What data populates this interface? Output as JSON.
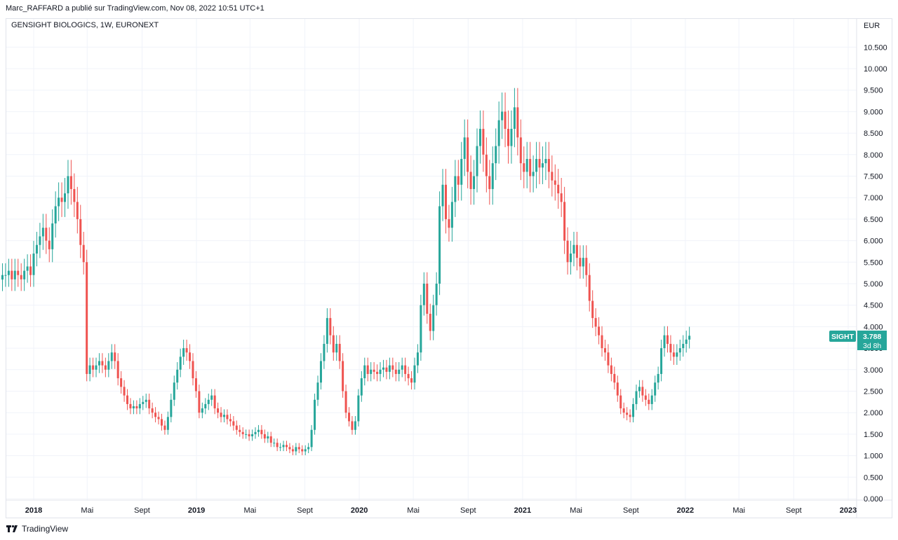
{
  "header": {
    "publisher_line": "Marc_RAFFARD a publié sur TradingView.com, Nov 08, 2022 10:51 UTC+1"
  },
  "symbol_title": "GENSIGHT BIOLOGICS, 1W, EURONEXT",
  "footer": {
    "brand": "TradingView",
    "logo_icon": "tradingview-logo-icon"
  },
  "price_label": {
    "ticker": "SIGHT",
    "price": "3.788",
    "countdown": "3d 8h"
  },
  "colors": {
    "up": "#26a69a",
    "down": "#ef5350",
    "grid": "#f0f3fa",
    "axis_text": "#131722",
    "badge": "#26a69a"
  },
  "chart_data": {
    "type": "candlestick",
    "title": "GENSIGHT BIOLOGICS, 1W, EURONEXT",
    "currency_label": "EUR",
    "ylim": [
      0,
      10.5
    ],
    "y_ticks": [
      "0.000",
      "0.500",
      "1.000",
      "1.500",
      "2.000",
      "2.500",
      "3.000",
      "3.500",
      "4.000",
      "4.500",
      "5.000",
      "5.500",
      "6.000",
      "6.500",
      "7.000",
      "7.500",
      "8.000",
      "8.500",
      "9.000",
      "9.500",
      "10.000",
      "10.500"
    ],
    "x_ticks": [
      {
        "label": "2018",
        "date": "2018-01-01",
        "bold": true
      },
      {
        "label": "Mai",
        "date": "2018-05-01",
        "bold": false
      },
      {
        "label": "Sept",
        "date": "2018-09-01",
        "bold": false
      },
      {
        "label": "2019",
        "date": "2019-01-01",
        "bold": true
      },
      {
        "label": "Mai",
        "date": "2019-05-01",
        "bold": false
      },
      {
        "label": "Sept",
        "date": "2019-09-01",
        "bold": false
      },
      {
        "label": "2020",
        "date": "2020-01-01",
        "bold": true
      },
      {
        "label": "Mai",
        "date": "2020-05-01",
        "bold": false
      },
      {
        "label": "Sept",
        "date": "2020-09-01",
        "bold": false
      },
      {
        "label": "2021",
        "date": "2021-01-01",
        "bold": true
      },
      {
        "label": "Mai",
        "date": "2021-05-01",
        "bold": false
      },
      {
        "label": "Sept",
        "date": "2021-09-01",
        "bold": false
      },
      {
        "label": "2022",
        "date": "2022-01-01",
        "bold": true
      },
      {
        "label": "Mai",
        "date": "2022-05-01",
        "bold": false
      },
      {
        "label": "Sept",
        "date": "2022-09-01",
        "bold": false
      },
      {
        "label": "2023",
        "date": "2023-01-01",
        "bold": true
      }
    ],
    "grid": true,
    "last_price": 3.788,
    "series": [
      {
        "name": "GENSIGHT BIOLOGICS",
        "interval": "1W",
        "first_week": "2017-10-23",
        "close": [
          5.2,
          5.2,
          5.3,
          5.1,
          5.3,
          5.2,
          5.1,
          5.3,
          5.4,
          5.2,
          5.7,
          5.9,
          6.1,
          6.3,
          6.0,
          5.8,
          6.4,
          6.8,
          7.0,
          6.9,
          7.1,
          7.5,
          7.2,
          6.9,
          6.5,
          5.9,
          5.5,
          2.9,
          3.1,
          3.0,
          3.1,
          3.2,
          3.1,
          3.0,
          3.2,
          3.4,
          3.2,
          2.8,
          2.6,
          2.4,
          2.2,
          2.1,
          2.15,
          2.1,
          2.2,
          2.25,
          2.3,
          2.1,
          2.0,
          1.9,
          1.85,
          1.7,
          1.6,
          1.9,
          2.3,
          2.7,
          3.0,
          3.3,
          3.5,
          3.4,
          3.2,
          2.8,
          2.5,
          2.0,
          2.1,
          2.2,
          2.3,
          2.4,
          2.1,
          2.0,
          1.9,
          1.95,
          1.85,
          1.8,
          1.7,
          1.6,
          1.55,
          1.5,
          1.5,
          1.45,
          1.5,
          1.55,
          1.6,
          1.5,
          1.4,
          1.45,
          1.3,
          1.3,
          1.2,
          1.2,
          1.25,
          1.2,
          1.15,
          1.1,
          1.2,
          1.15,
          1.1,
          1.15,
          1.2,
          1.6,
          2.3,
          2.7,
          3.2,
          3.6,
          4.2,
          3.8,
          3.4,
          3.6,
          3.2,
          2.5,
          2.0,
          1.8,
          1.6,
          1.8,
          2.4,
          2.8,
          3.1,
          2.9,
          3.0,
          2.95,
          2.9,
          3.0,
          3.05,
          2.95,
          3.1,
          3.0,
          2.9,
          3.0,
          3.1,
          2.9,
          2.8,
          2.7,
          3.1,
          3.4,
          4.5,
          5.0,
          4.3,
          3.9,
          4.5,
          5.0,
          6.8,
          7.3,
          6.5,
          6.3,
          6.9,
          7.5,
          7.3,
          7.9,
          8.4,
          7.6,
          7.2,
          7.5,
          8.2,
          8.6,
          8.0,
          7.5,
          7.2,
          7.8,
          8.2,
          8.8,
          9.0,
          8.6,
          8.2,
          8.6,
          9.1,
          8.4,
          7.8,
          7.6,
          7.9,
          7.5,
          7.6,
          7.9,
          7.7,
          7.8,
          7.9,
          7.6,
          7.4,
          7.3,
          7.1,
          6.9,
          6.0,
          5.5,
          5.7,
          5.9,
          5.6,
          5.4,
          5.6,
          5.2,
          4.6,
          4.2,
          4.0,
          3.8,
          3.5,
          3.4,
          3.1,
          2.9,
          2.7,
          2.4,
          2.1,
          2.0,
          1.95,
          1.9,
          2.2,
          2.5,
          2.6,
          2.4,
          2.3,
          2.2,
          2.4,
          2.7,
          2.9,
          3.5,
          3.8,
          3.6,
          3.4,
          3.3,
          3.4,
          3.5,
          3.6,
          3.7,
          3.788
        ]
      }
    ]
  }
}
